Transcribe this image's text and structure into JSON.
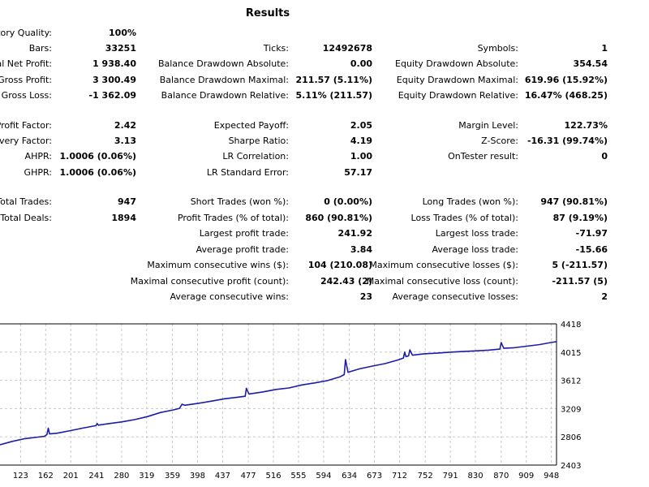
{
  "title": "Results",
  "stats": {
    "history_quality": {
      "label": "istory Quality:",
      "value": "100%"
    },
    "bars": {
      "label": "Bars:",
      "value": "33251"
    },
    "ticks": {
      "label": "Ticks:",
      "value": "12492678"
    },
    "symbols": {
      "label": "Symbols:",
      "value": "1"
    },
    "total_net_profit": {
      "label": "otal Net Profit:",
      "value": "1 938.40"
    },
    "balance_dd_abs": {
      "label": "Balance Drawdown Absolute:",
      "value": "0.00"
    },
    "equity_dd_abs": {
      "label": "Equity Drawdown Absolute:",
      "value": "354.54"
    },
    "gross_profit": {
      "label": "Gross Profit:",
      "value": "3 300.49"
    },
    "balance_dd_max": {
      "label": "Balance Drawdown Maximal:",
      "value": "211.57 (5.11%)"
    },
    "equity_dd_max": {
      "label": "Equity Drawdown Maximal:",
      "value": "619.96 (15.92%)"
    },
    "gross_loss": {
      "label": "Gross Loss:",
      "value": "-1 362.09"
    },
    "balance_dd_rel": {
      "label": "Balance Drawdown Relative:",
      "value": "5.11% (211.57)"
    },
    "equity_dd_rel": {
      "label": "Equity Drawdown Relative:",
      "value": "16.47% (468.25)"
    },
    "profit_factor": {
      "label": "Profit Factor:",
      "value": "2.42"
    },
    "expected_payoff": {
      "label": "Expected Payoff:",
      "value": "2.05"
    },
    "margin_level": {
      "label": "Margin Level:",
      "value": "122.73%"
    },
    "recovery_factor": {
      "label": "covery Factor:",
      "value": "3.13"
    },
    "sharpe_ratio": {
      "label": "Sharpe Ratio:",
      "value": "4.19"
    },
    "z_score": {
      "label": "Z-Score:",
      "value": "-16.31 (99.74%)"
    },
    "ahpr": {
      "label": "AHPR:",
      "value": "1.0006 (0.06%)"
    },
    "lr_correlation": {
      "label": "LR Correlation:",
      "value": "1.00"
    },
    "ontester": {
      "label": "OnTester result:",
      "value": "0"
    },
    "ghpr": {
      "label": "GHPR:",
      "value": "1.0006 (0.06%)"
    },
    "lr_std_error": {
      "label": "LR Standard Error:",
      "value": "57.17"
    },
    "total_trades": {
      "label": "Total Trades:",
      "value": "947"
    },
    "short_trades": {
      "label": "Short Trades (won %):",
      "value": "0 (0.00%)"
    },
    "long_trades": {
      "label": "Long Trades (won %):",
      "value": "947 (90.81%)"
    },
    "total_deals": {
      "label": "Total Deals:",
      "value": "1894"
    },
    "profit_trades": {
      "label": "Profit Trades (% of total):",
      "value": "860 (90.81%)"
    },
    "loss_trades": {
      "label": "Loss Trades (% of total):",
      "value": "87 (9.19%)"
    },
    "largest_profit": {
      "label": "Largest profit trade:",
      "value": "241.92"
    },
    "largest_loss": {
      "label": "Largest loss trade:",
      "value": "-71.97"
    },
    "avg_profit": {
      "label": "Average profit trade:",
      "value": "3.84"
    },
    "avg_loss": {
      "label": "Average loss trade:",
      "value": "-15.66"
    },
    "max_consec_wins": {
      "label": "Maximum consecutive wins ($):",
      "value": "104 (210.08)"
    },
    "max_consec_losses": {
      "label": "Maximum consecutive losses ($):",
      "value": "5 (-211.57)"
    },
    "maximal_consec_profit": {
      "label": "Maximal consecutive profit (count):",
      "value": "242.43 (2)"
    },
    "maximal_consec_loss": {
      "label": "Maximal consecutive loss (count):",
      "value": "-211.57 (5)"
    },
    "avg_consec_wins": {
      "label": "Average consecutive wins:",
      "value": "23"
    },
    "avg_consec_losses": {
      "label": "Average consecutive losses:",
      "value": "2"
    }
  },
  "colors": {
    "line": "#1c1ca8",
    "grid": "#c8c8c8",
    "axis": "#000000"
  },
  "chart_data": {
    "type": "line",
    "x_ticks": [
      "123",
      "162",
      "201",
      "241",
      "280",
      "319",
      "359",
      "398",
      "437",
      "477",
      "516",
      "555",
      "594",
      "634",
      "673",
      "712",
      "752",
      "791",
      "830",
      "870",
      "909",
      "948"
    ],
    "y_ticks": [
      "2403",
      "2806",
      "3209",
      "3612",
      "4015",
      "4418"
    ],
    "xlim": [
      91,
      956
    ],
    "ylim": [
      2403,
      4418
    ],
    "series": [
      {
        "values": [
          [
            91,
            2693
          ],
          [
            110,
            2741
          ],
          [
            130,
            2781
          ],
          [
            150,
            2803
          ],
          [
            160,
            2813
          ],
          [
            164,
            2840
          ],
          [
            166,
            2930
          ],
          [
            168,
            2848
          ],
          [
            180,
            2858
          ],
          [
            200,
            2894
          ],
          [
            220,
            2931
          ],
          [
            236,
            2959
          ],
          [
            240,
            2966
          ],
          [
            242,
            2996
          ],
          [
            244,
            2973
          ],
          [
            260,
            2995
          ],
          [
            280,
            3019
          ],
          [
            300,
            3051
          ],
          [
            320,
            3094
          ],
          [
            340,
            3152
          ],
          [
            360,
            3189
          ],
          [
            370,
            3213
          ],
          [
            374,
            3271
          ],
          [
            378,
            3257
          ],
          [
            400,
            3286
          ],
          [
            420,
            3316
          ],
          [
            440,
            3349
          ],
          [
            460,
            3371
          ],
          [
            472,
            3385
          ],
          [
            474,
            3499
          ],
          [
            478,
            3418
          ],
          [
            500,
            3448
          ],
          [
            520,
            3482
          ],
          [
            540,
            3503
          ],
          [
            560,
            3546
          ],
          [
            580,
            3575
          ],
          [
            600,
            3609
          ],
          [
            620,
            3664
          ],
          [
            626,
            3694
          ],
          [
            628,
            3909
          ],
          [
            632,
            3728
          ],
          [
            650,
            3777
          ],
          [
            670,
            3816
          ],
          [
            690,
            3852
          ],
          [
            710,
            3904
          ],
          [
            718,
            3931
          ],
          [
            720,
            4014
          ],
          [
            722,
            3951
          ],
          [
            726,
            3961
          ],
          [
            728,
            4047
          ],
          [
            732,
            3971
          ],
          [
            750,
            3991
          ],
          [
            770,
            4000
          ],
          [
            790,
            4014
          ],
          [
            810,
            4023
          ],
          [
            830,
            4032
          ],
          [
            850,
            4043
          ],
          [
            868,
            4058
          ],
          [
            870,
            4151
          ],
          [
            874,
            4070
          ],
          [
            890,
            4077
          ],
          [
            910,
            4099
          ],
          [
            930,
            4123
          ],
          [
            947,
            4152
          ],
          [
            956,
            4164
          ]
        ]
      }
    ]
  }
}
